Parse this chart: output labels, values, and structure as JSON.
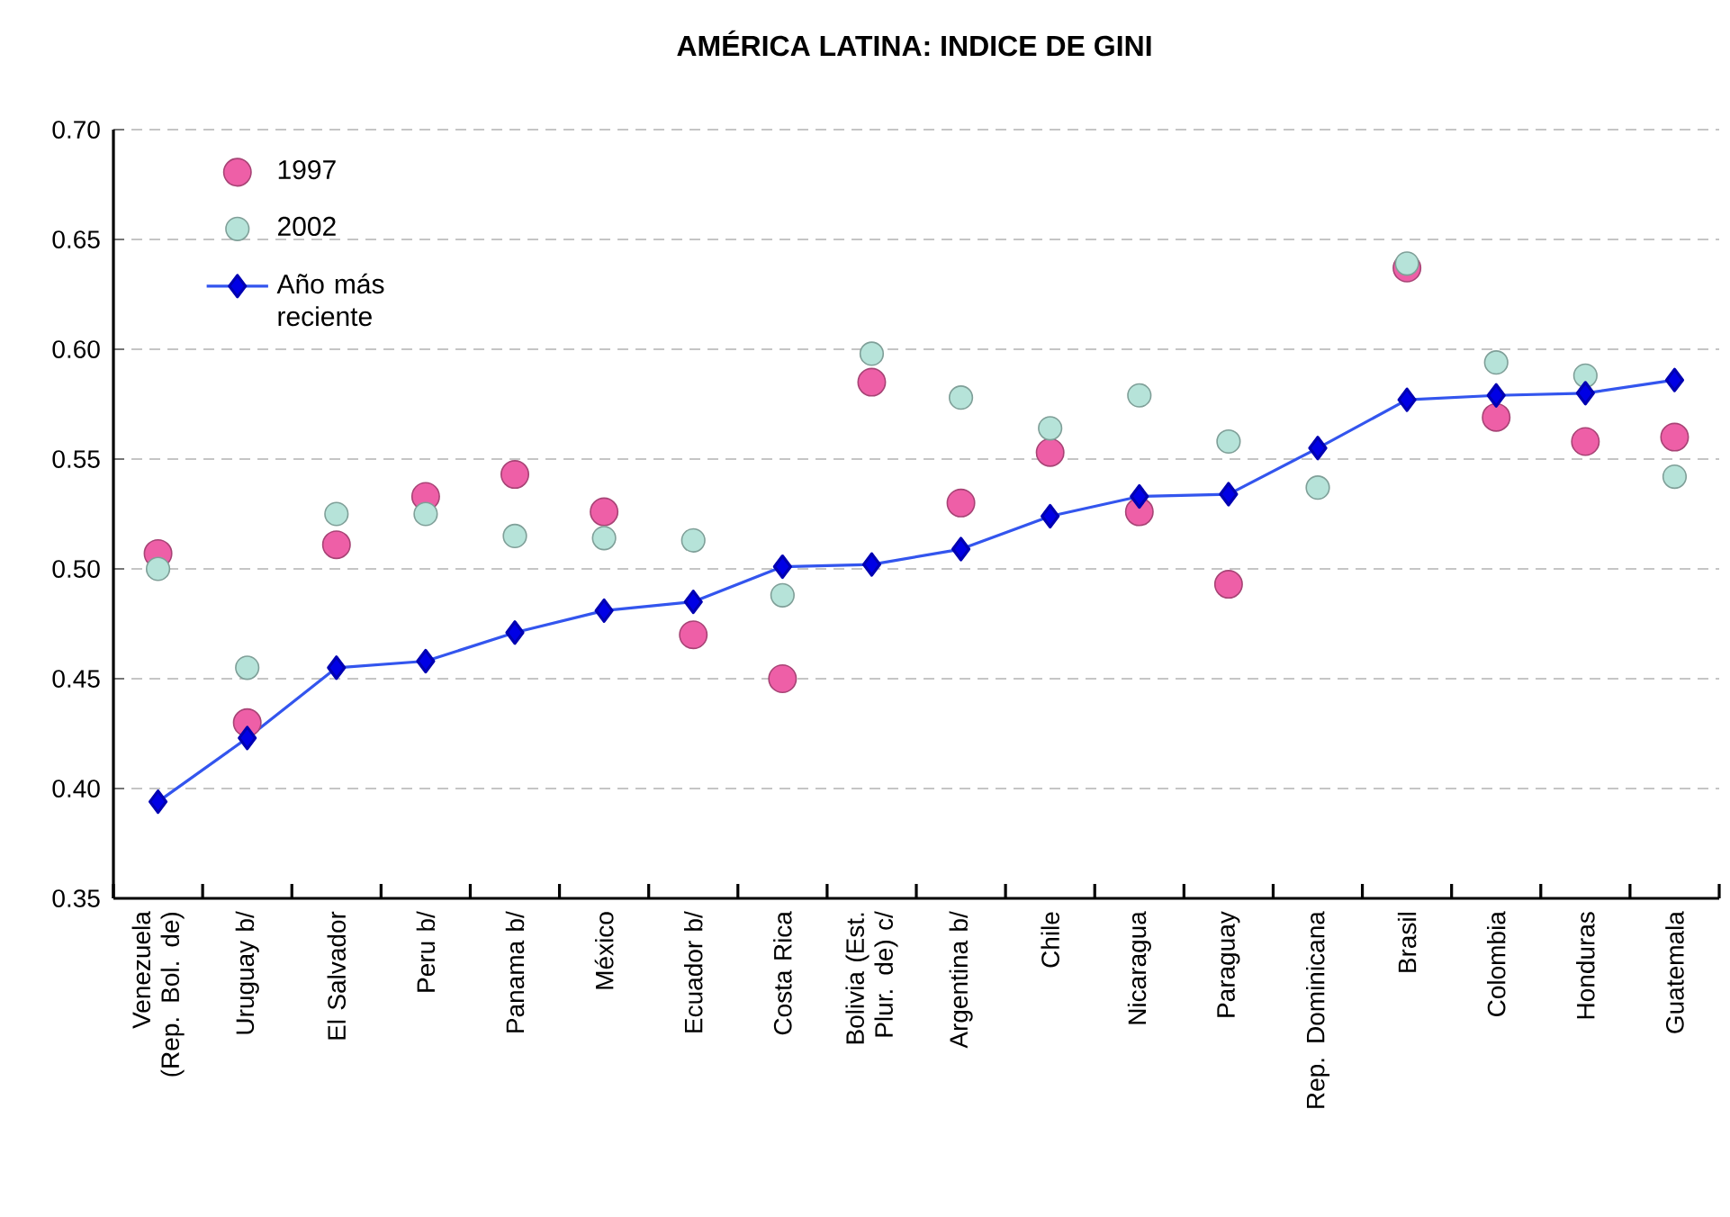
{
  "chart_data": {
    "type": "line",
    "title": "AMÉRICA LATINA: INDICE DE GINI",
    "categories": [
      "Venezuela (Rep. Bol. de)",
      "Uruguay b/",
      "El Salvador",
      "Peru b/",
      "Panama b/",
      "México",
      "Ecuador b/",
      "Costa Rica",
      "Bolivia (Est. Plur. de) c/",
      "Argentina b/",
      "Chile",
      "Nicaragua",
      "Paraguay",
      "Rep. Dominicana",
      "Brasil",
      "Colombia",
      "Honduras",
      "Guatemala"
    ],
    "series": [
      {
        "name": "1997",
        "type": "scatter",
        "marker": "circle",
        "color": "#ee5fa7",
        "values": [
          0.507,
          0.43,
          0.511,
          0.533,
          0.543,
          0.526,
          0.47,
          0.45,
          0.585,
          0.53,
          0.553,
          0.526,
          0.493,
          null,
          0.637,
          0.569,
          0.558,
          0.56
        ]
      },
      {
        "name": "2002",
        "type": "scatter",
        "marker": "circle",
        "color": "#b6e3d9",
        "values": [
          0.5,
          0.455,
          0.525,
          0.525,
          0.515,
          0.514,
          0.513,
          0.488,
          0.598,
          0.578,
          0.564,
          0.579,
          0.558,
          0.537,
          0.639,
          0.594,
          0.588,
          0.542
        ]
      },
      {
        "name": "Año más reciente",
        "marker": "diamond",
        "color": "#3355ee",
        "values": [
          0.394,
          0.423,
          0.455,
          0.458,
          0.471,
          0.481,
          0.485,
          0.501,
          0.502,
          0.509,
          0.524,
          0.533,
          0.534,
          0.555,
          0.577,
          0.579,
          0.58,
          0.586
        ]
      }
    ],
    "ylim": [
      0.35,
      0.7
    ],
    "yticks": [
      {
        "value": 0.35,
        "label": "0.35"
      },
      {
        "value": 0.4,
        "label": "0.40"
      },
      {
        "value": 0.45,
        "label": "0.45"
      },
      {
        "value": 0.5,
        "label": "0.50"
      },
      {
        "value": 0.55,
        "label": "0.55"
      },
      {
        "value": 0.6,
        "label": "0.60"
      },
      {
        "value": 0.65,
        "label": "0.65"
      },
      {
        "value": 0.7,
        "label": "0.70"
      }
    ],
    "grid": "y",
    "legend": "top left"
  }
}
